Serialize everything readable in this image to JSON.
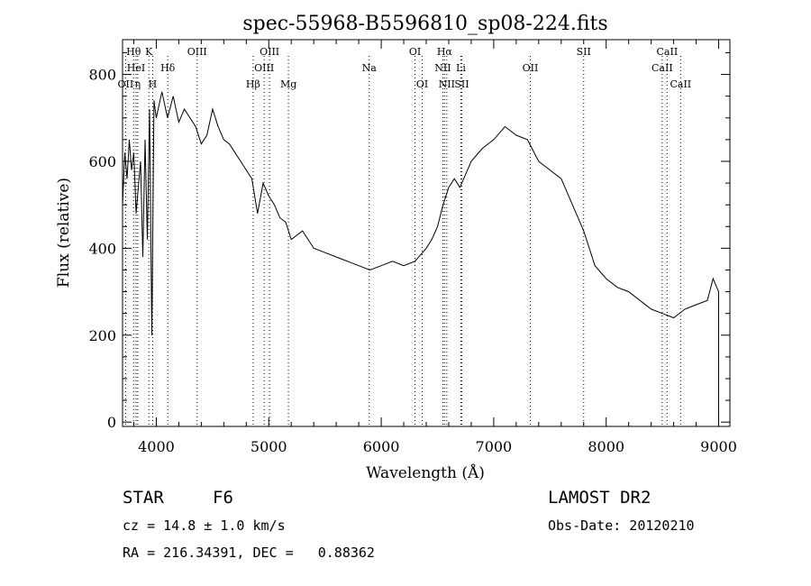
{
  "chart_data": {
    "type": "line",
    "title": "spec-55968-B5596810_sp08-224.fits",
    "xlabel": "Wavelength (Å)",
    "ylabel": "Flux (relative)",
    "xlim": [
      3700,
      9100
    ],
    "ylim": [
      -10,
      880
    ],
    "xticks": [
      4000,
      5000,
      6000,
      7000,
      8000,
      9000
    ],
    "yticks": [
      0,
      200,
      400,
      600,
      800
    ],
    "grid": false,
    "series": [
      {
        "x": [
          3700,
          3720,
          3740,
          3760,
          3780,
          3800,
          3820,
          3840,
          3860,
          3880,
          3900,
          3920,
          3940,
          3960,
          3980,
          4000,
          4050,
          4100,
          4150,
          4200,
          4250,
          4300,
          4350,
          4400,
          4450,
          4500,
          4550,
          4600,
          4650,
          4700,
          4750,
          4800,
          4850,
          4900,
          4950,
          5000,
          5050,
          5100,
          5150,
          5200,
          5300,
          5400,
          5500,
          5600,
          5700,
          5800,
          5900,
          6000,
          6100,
          6200,
          6300,
          6400,
          6450,
          6500,
          6550,
          6600,
          6650,
          6700,
          6750,
          6800,
          6900,
          7000,
          7100,
          7200,
          7300,
          7400,
          7500,
          7600,
          7700,
          7750,
          7800,
          7850,
          7900,
          8000,
          8100,
          8200,
          8300,
          8400,
          8500,
          8600,
          8700,
          8800,
          8900,
          8950,
          9000
        ],
        "y": [
          500,
          620,
          560,
          650,
          580,
          620,
          480,
          540,
          600,
          380,
          650,
          420,
          720,
          200,
          740,
          700,
          760,
          700,
          750,
          690,
          720,
          700,
          680,
          640,
          660,
          720,
          680,
          650,
          640,
          620,
          600,
          580,
          560,
          480,
          550,
          520,
          500,
          470,
          460,
          420,
          440,
          400,
          390,
          380,
          370,
          360,
          350,
          360,
          370,
          360,
          370,
          400,
          420,
          450,
          500,
          540,
          560,
          540,
          570,
          600,
          630,
          650,
          680,
          660,
          650,
          600,
          580,
          560,
          500,
          470,
          440,
          400,
          360,
          330,
          310,
          300,
          280,
          260,
          250,
          240,
          260,
          270,
          280,
          330,
          300
        ]
      }
    ],
    "lines": [
      {
        "label": "Hθ",
        "x": 3798,
        "row": 0
      },
      {
        "label": "OII",
        "x": 3727,
        "row": 2
      },
      {
        "label": "HeI",
        "x": 3820,
        "row": 1
      },
      {
        "label": "η",
        "x": 3835,
        "row": 2
      },
      {
        "label": "K",
        "x": 3934,
        "row": 0
      },
      {
        "label": "H",
        "x": 3968,
        "row": 2
      },
      {
        "label": "Hδ",
        "x": 4102,
        "row": 1
      },
      {
        "label": "OIII",
        "x": 4363,
        "row": 0
      },
      {
        "label": "Hβ",
        "x": 4861,
        "row": 2
      },
      {
        "label": "OIII",
        "x": 4959,
        "row": 1
      },
      {
        "label": "OIII",
        "x": 5007,
        "row": 0
      },
      {
        "label": "Mg",
        "x": 5175,
        "row": 2
      },
      {
        "label": "Na",
        "x": 5893,
        "row": 1
      },
      {
        "label": "OI",
        "x": 6300,
        "row": 0
      },
      {
        "label": "OI",
        "x": 6364,
        "row": 2
      },
      {
        "label": "Hα",
        "x": 6563,
        "row": 0
      },
      {
        "label": "NII",
        "x": 6548,
        "row": 1
      },
      {
        "label": "NII",
        "x": 6583,
        "row": 2
      },
      {
        "label": "Li",
        "x": 6708,
        "row": 1
      },
      {
        "label": "SII",
        "x": 6716,
        "row": 2
      },
      {
        "label": "OII",
        "x": 7325,
        "row": 1
      },
      {
        "label": "SII",
        "x": 7800,
        "row": 0
      },
      {
        "label": "CaII",
        "x": 8498,
        "row": 1
      },
      {
        "label": "CaII",
        "x": 8542,
        "row": 0
      },
      {
        "label": "CaII",
        "x": 8662,
        "row": 2
      }
    ]
  },
  "info": {
    "object_class": "STAR",
    "subclass": "F6",
    "survey": "LAMOST DR2",
    "velocity": "cz = 14.8 ± 1.0 km/s",
    "obs_date": "Obs-Date: 20120210",
    "coordinates": "RA = 216.34391, DEC =   0.88362"
  }
}
